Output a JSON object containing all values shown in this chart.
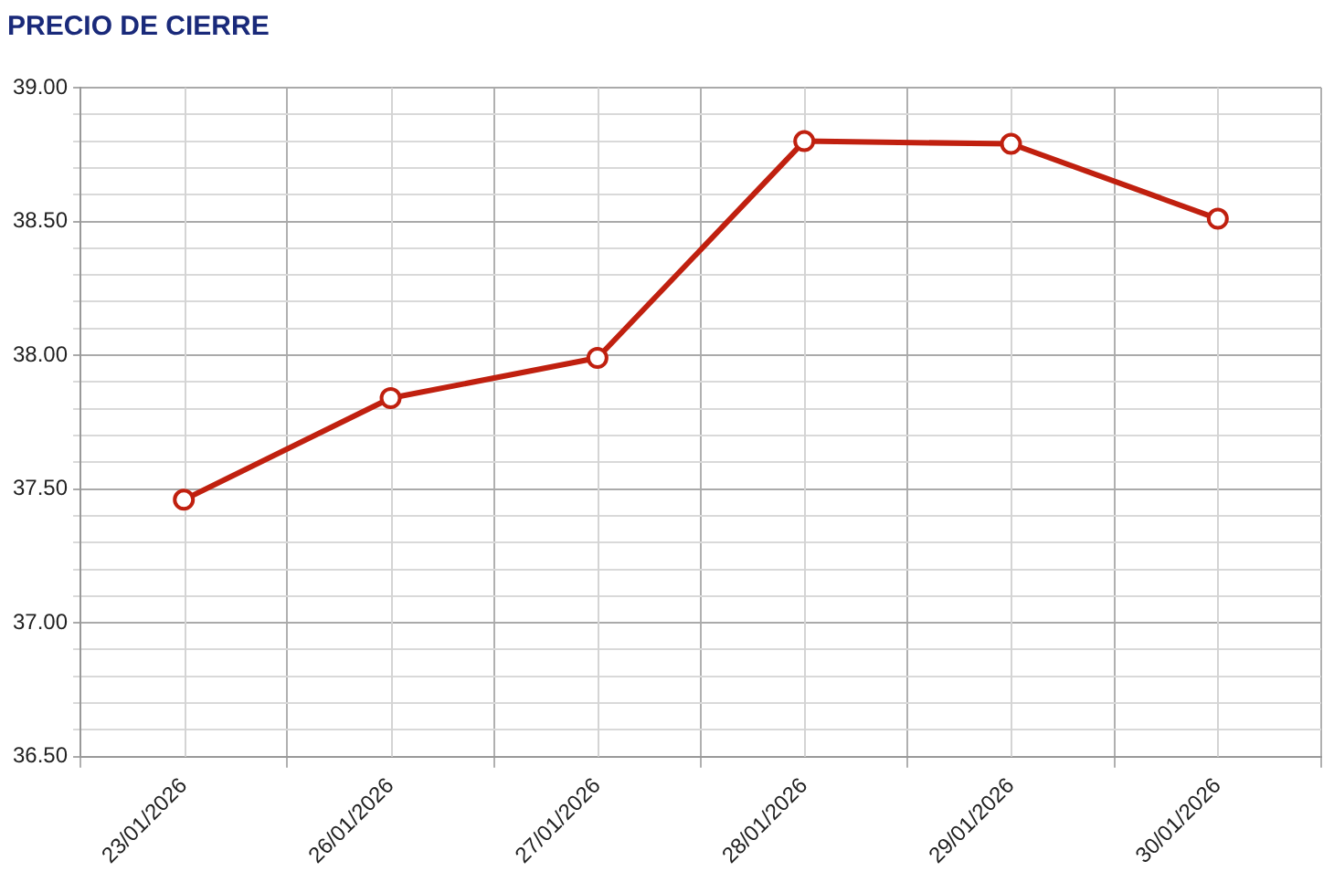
{
  "chart_data": {
    "type": "line",
    "title": "PRECIO DE CIERRE",
    "categories": [
      "23/01/2026",
      "26/01/2026",
      "27/01/2026",
      "28/01/2026",
      "29/01/2026",
      "30/01/2026"
    ],
    "series": [
      {
        "color": "#c0200f",
        "values": [
          37.46,
          37.84,
          37.99,
          38.8,
          38.79,
          38.51
        ]
      }
    ],
    "ylim": [
      36.5,
      39
    ],
    "yticks": [
      "36.50",
      {
        "value": 36.6,
        "label": null
      },
      {
        "value": 36.7,
        "label": null
      },
      {
        "value": 36.8,
        "label": null
      },
      {
        "value": 36.9,
        "label": null
      },
      {
        "value": 37,
        "label": "37.00"
      },
      {
        "value": 37.1,
        "label": null
      },
      {
        "value": 37.2,
        "label": null
      },
      {
        "value": 37.3,
        "label": null
      },
      {
        "value": 37.4,
        "label": null
      },
      {
        "value": 37.5,
        "label": "37.50"
      },
      {
        "value": 37.6,
        "label": null
      },
      {
        "value": 37.7,
        "label": null
      },
      {
        "value": 37.8,
        "label": null
      },
      {
        "value": 37.9,
        "label": null
      },
      {
        "value": 38,
        "label": "38.00"
      },
      {
        "value": 38.1,
        "label": null
      },
      {
        "value": 38.2,
        "label": null
      },
      {
        "value": 38.3,
        "label": null
      },
      {
        "value": 38.4,
        "label": null
      },
      {
        "value": 38.5,
        "label": "38.50"
      },
      {
        "value": 38.6,
        "label": null
      },
      {
        "value": 38.7,
        "label": null
      },
      {
        "value": 38.8,
        "label": null
      },
      {
        "value": 38.9,
        "label": null
      },
      {
        "value": 39,
        "label": "39.00"
      }
    ],
    "grid": true,
    "legend": false,
    "marker": "circle",
    "line_style": "solid"
  }
}
